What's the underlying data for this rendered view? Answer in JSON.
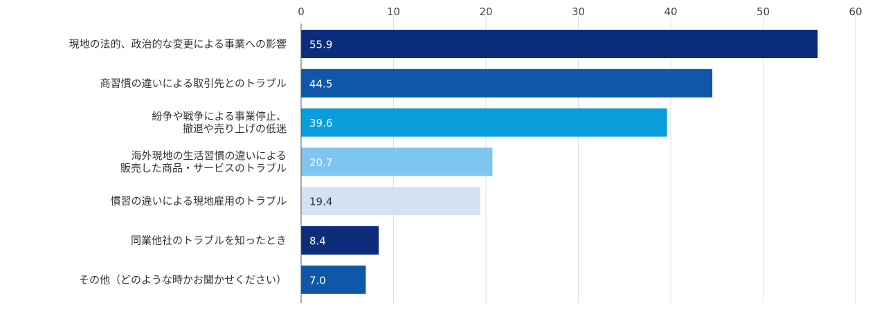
{
  "chart_data": {
    "type": "bar",
    "orientation": "horizontal",
    "title": "",
    "xlabel": "",
    "ylabel": "",
    "xlim": [
      0,
      60
    ],
    "x_ticks": [
      0,
      10,
      20,
      30,
      40,
      50,
      60
    ],
    "axis_position": "top",
    "grid": true,
    "categories": [
      [
        "現地の法的、政治的な変更による事業への影響"
      ],
      [
        "商習慣の違いによる取引先とのトラブル"
      ],
      [
        "紛争や戦争による事業停止、",
        "撤退や売り上げの低迷"
      ],
      [
        "海外現地の生活習慣の違いによる",
        "販売した商品・サービスのトラブル"
      ],
      [
        "慣習の違いによる現地雇用のトラブル"
      ],
      [
        "同業他社のトラブルを知ったとき"
      ],
      [
        "その他（どのような時かお聞かせください）"
      ]
    ],
    "values": [
      55.9,
      44.5,
      39.6,
      20.7,
      19.4,
      8.4,
      7.0
    ],
    "value_labels": [
      "55.9",
      "44.5",
      "39.6",
      "20.7",
      "19.4",
      "8.4",
      "7.0"
    ],
    "colors": [
      "#0b2d7c",
      "#0f57a8",
      "#0a9ddb",
      "#7ec6ef",
      "#d3e3f4",
      "#0b2d7c",
      "#0f57a8"
    ],
    "label_colors": [
      "#ffffff",
      "#ffffff",
      "#ffffff",
      "#ffffff",
      "#333333",
      "#ffffff",
      "#ffffff"
    ],
    "grid_color": "#cfe3ee"
  }
}
